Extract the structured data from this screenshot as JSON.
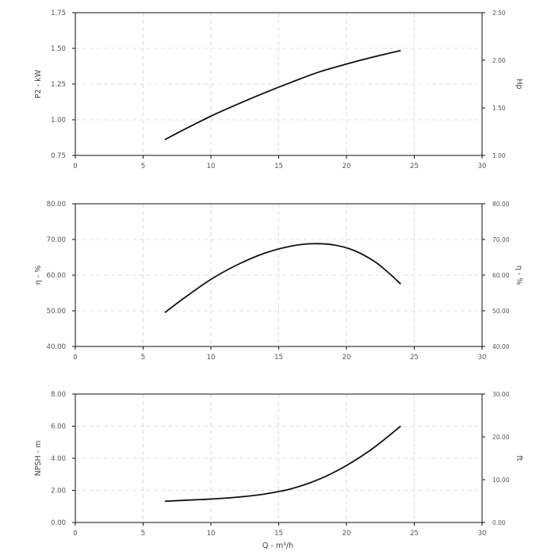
{
  "chart_data": [
    {
      "type": "line",
      "ylabel": "P2 - kW",
      "y2label": "Hp",
      "xlim": [
        0,
        30
      ],
      "ylim": [
        0.75,
        1.75
      ],
      "y2lim": [
        1.0,
        2.5
      ],
      "x_ticks": [
        "0",
        "5",
        "10",
        "15",
        "20",
        "25",
        "30"
      ],
      "y_ticks": [
        "0.75",
        "1.00",
        "1.25",
        "1.50",
        "1.75"
      ],
      "y2_ticks": [
        "1.00",
        "1.50",
        "2.00",
        "2.50"
      ],
      "grid": true,
      "series": [
        {
          "x": [
            6.6,
            8,
            10,
            12,
            14,
            16,
            18,
            20,
            22,
            24
          ],
          "y": [
            0.86,
            0.93,
            1.025,
            1.11,
            1.19,
            1.265,
            1.335,
            1.39,
            1.44,
            1.485
          ]
        }
      ]
    },
    {
      "type": "line",
      "ylabel": "η - %",
      "y2label": "η - %",
      "xlim": [
        0,
        30
      ],
      "ylim": [
        40,
        80
      ],
      "y2lim": [
        40,
        80
      ],
      "x_ticks": [
        "0",
        "5",
        "10",
        "15",
        "20",
        "25",
        "30"
      ],
      "y_ticks": [
        "40.00",
        "50.00",
        "60.00",
        "70.00",
        "80.00"
      ],
      "y2_ticks": [
        "40.00",
        "50.00",
        "60.00",
        "70.00",
        "80.00"
      ],
      "grid": true,
      "series": [
        {
          "x": [
            6.6,
            8,
            10,
            12,
            14,
            16,
            17.5,
            19,
            20.5,
            22,
            23,
            24
          ],
          "y": [
            49.5,
            53.5,
            58.8,
            63.0,
            66.2,
            68.2,
            68.8,
            68.5,
            67.0,
            64.0,
            61.0,
            57.5
          ]
        }
      ]
    },
    {
      "type": "line",
      "ylabel": "NPSH - m",
      "y2label": "ft",
      "xlabel": "Q - m³/h",
      "xlim": [
        0,
        30
      ],
      "ylim": [
        0,
        8
      ],
      "y2lim": [
        0,
        30
      ],
      "x_ticks": [
        "0",
        "5",
        "10",
        "15",
        "20",
        "25",
        "30"
      ],
      "y_ticks": [
        "0.00",
        "2.00",
        "4.00",
        "6.00",
        "8.00"
      ],
      "y2_ticks": [
        "0.00",
        "10.00",
        "20.00",
        "30.00"
      ],
      "grid": true,
      "series": [
        {
          "x": [
            6.6,
            8,
            10,
            12,
            14,
            16,
            18,
            20,
            22,
            24
          ],
          "y": [
            1.32,
            1.38,
            1.46,
            1.58,
            1.78,
            2.12,
            2.7,
            3.55,
            4.65,
            6.0
          ]
        }
      ]
    }
  ]
}
